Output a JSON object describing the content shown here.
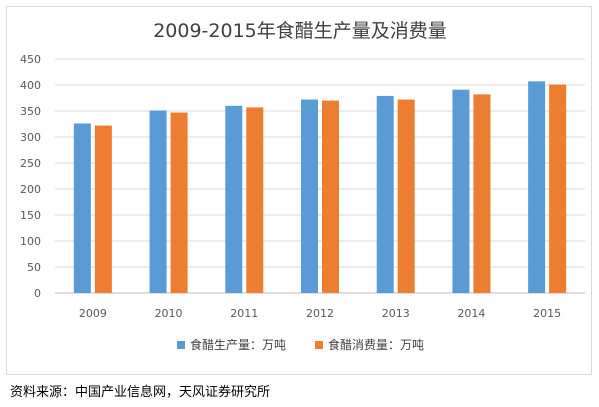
{
  "chart_data": {
    "type": "bar",
    "title": "2009-2015年食醋生产量及消费量",
    "categories": [
      "2009",
      "2010",
      "2011",
      "2012",
      "2013",
      "2014",
      "2015"
    ],
    "series": [
      {
        "name": "食醋生产量：万吨",
        "color": "#5b9bd5",
        "values": [
          326,
          351,
          360,
          372,
          379,
          391,
          407
        ]
      },
      {
        "name": "食醋消费量：万吨",
        "color": "#ed7d31",
        "values": [
          322,
          347,
          357,
          370,
          372,
          382,
          401
        ]
      }
    ],
    "ylim": [
      0,
      450
    ],
    "yticks": [
      0,
      50,
      100,
      150,
      200,
      250,
      300,
      350,
      400,
      450
    ],
    "grid": true,
    "legend": "bottom"
  },
  "source_caption": "资料来源：中国产业信息网，天风证券研究所"
}
